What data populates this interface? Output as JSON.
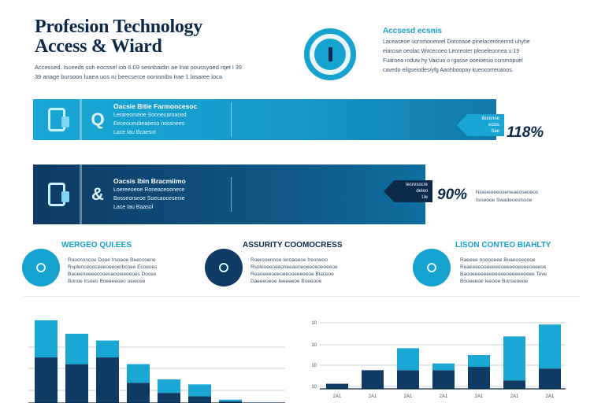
{
  "header": {
    "title_line1": "Profesion Technology",
    "title_line2": "Access & Wiard",
    "subtitle_line1": "Accessed. Isceeds suh eocssel iob 6.09 sesnbaidin ae lnat ooussyoed rqet l 39",
    "subtitle_line2": "39 ariage bursoon luaea uos ru beecserce oonisnibs Irae 1 lasaree loca"
  },
  "access_panel": {
    "title": "Accsesd ecsnis",
    "lines": [
      "Laceaseoe uornmonenrel Dorceaoe pinelaceronemrd uhyhe",
      "eiarcise oeolac Wircecoeo Leoreoter pleoeleonnea u 19",
      "Fuaroea roduw hy Vaicuo o rgasse ooeioesio ccrsmopuel",
      "cavedo eilgseiodes/yfg Aaohboopay kueocorreuaoos."
    ]
  },
  "banners": [
    {
      "glyph": "Q",
      "title": "Oacsie Bitie Farmoncesoc",
      "line1": "Lerareomeoe Sonnecaroaced",
      "line2": "Eeceoueubeaoeso nossnees",
      "line3": "Lace Iau Bcaesol",
      "tag_line1": "Ilecenne",
      "tag_line2": "eclos",
      "tag_line3": "Sae",
      "percent": "118%"
    },
    {
      "glyph": "&",
      "title": "Oacsis Ibin Bracmiimo",
      "line1": "Loereeoeoe Roneaceoonece",
      "line2": "Bosseorseoe Soecaocesenie",
      "line3": "Lace Iau Baasol",
      "tag_line1": "Iecresocre",
      "tag_line2": "deleo",
      "tag_line3": "Ue",
      "percent": "90%",
      "note_line1": "Nceoeoeeoseneaeoseoeos",
      "note_line2": "Isiseooe Swadeoeslssoe"
    }
  ],
  "features": [
    {
      "title": "WERGEO QUI.EES",
      "lines": [
        "Ruocnoncou Dooe Irsoaoe Beeccoene",
        "Rsplenceooceeeoeeoerbcoee Ecoeoes",
        "Baoeeneeeecooeoaouieeeeoes Docee",
        "Bonoe Irsoeo Boeeeeoeo oeiecee"
      ]
    },
    {
      "title": "ASSURITY COOMOCRESS",
      "lines": [
        "Roerooennoe Ieroaoeoe Ireoneoo",
        "Rsoleoeeoeeoneeaeneoeeoeoeoeeoe",
        "Reaoeeeoeeoeeooeeeeeoe Blaceoe",
        "Daeeeoeoe Ieeeeeoe Boeeooe"
      ]
    },
    {
      "title": "LISON CONTEO BIAHLTY",
      "lines": [
        "Raeeee nooooeee Boaeoseoooe",
        "Reaeeeeooeeeeeoeeeeoeoeeoeeeoe",
        "Baooeeeeeeeeeoeeoeeeeeeeee Teve",
        "Booeeeoe Ieeooe Bonseoeoe"
      ]
    }
  ],
  "chart_data": [
    {
      "type": "bar",
      "stacked": true,
      "categories": [
        "",
        "",
        "",
        "",
        "",
        "",
        ""
      ],
      "series": [
        {
          "color": "#0e3a63",
          "values": [
            27,
            23,
            27,
            12,
            6,
            4,
            1
          ]
        },
        {
          "color": "#1aa7d4",
          "values": [
            22,
            18,
            10,
            11,
            8,
            7,
            1
          ]
        }
      ],
      "grid": true,
      "ylim": [
        0,
        55
      ]
    },
    {
      "type": "bar",
      "stacked": true,
      "categories": [
        "2A1",
        "2A1",
        "2A1",
        "2A1",
        "2A1",
        "2A1",
        "2A1"
      ],
      "yticks": [
        "10",
        "10",
        "10",
        "10"
      ],
      "series": [
        {
          "color": "#0e3a63",
          "values": [
            3,
            11,
            11,
            11,
            13,
            5,
            12
          ]
        },
        {
          "color": "#1aa7d4",
          "values": [
            0,
            0,
            13,
            4,
            7,
            26,
            26
          ]
        }
      ],
      "grid": true,
      "ylim": [
        0,
        40
      ]
    }
  ]
}
